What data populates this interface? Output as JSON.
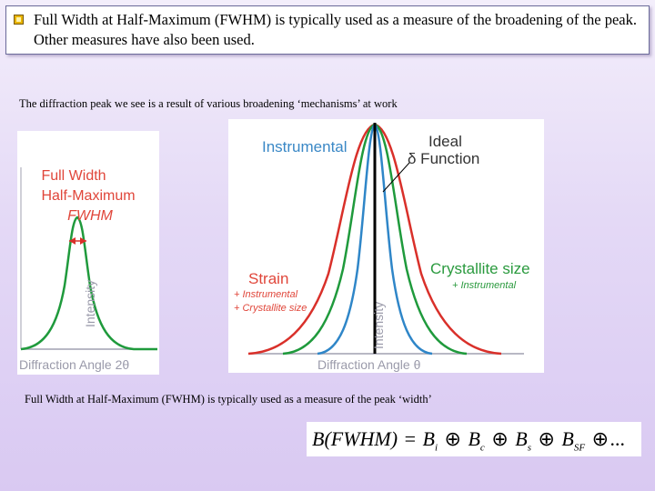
{
  "header": {
    "text": "Full Width at Half-Maximum (FWHM) is typically used as a measure of the broadening of the peak. Other measures have also been used."
  },
  "caption_top": "The diffraction peak we see is a result of various broadening ‘mechanisms’ at work",
  "caption_bottom": "Full Width at Half-Maximum (FWHM) is typically used as a measure of the peak ‘width’",
  "left_figure": {
    "title_line1": "Full Width",
    "title_line2": "Half-Maximum",
    "title_line3": "FWHM",
    "y_label": "Intensity",
    "x_label": "Diffraction Angle 2θ"
  },
  "right_figure": {
    "label_instrumental": "Instrumental",
    "label_ideal_line1": "Ideal",
    "label_ideal_line2": "δ Function",
    "label_strain": "Strain",
    "label_strain_sub1": "+ Instrumental",
    "label_strain_sub2": "+ Crystallite size",
    "label_crystallite": "Crystallite size",
    "label_crystallite_sub": "+ Instrumental",
    "y_label": "Intensity",
    "x_label": "Diffraction Angle θ"
  },
  "formula": {
    "lhs": "B",
    "paren": "(FWHM)",
    "eq": "=",
    "terms": [
      {
        "base": "B",
        "sub": "i"
      },
      {
        "base": "B",
        "sub": "c"
      },
      {
        "base": "B",
        "sub": "s"
      },
      {
        "base": "B",
        "sub": "SF"
      }
    ],
    "op": "⊕",
    "tail": "..."
  },
  "colors": {
    "green_curve": "#1f9a3c",
    "red_curve": "#d9302a",
    "blue_curve": "#2f86c8",
    "label_red": "#e0463a",
    "label_blue": "#3a88c6",
    "label_green": "#2a9a3e",
    "axis_gray": "#9a9aaa"
  }
}
